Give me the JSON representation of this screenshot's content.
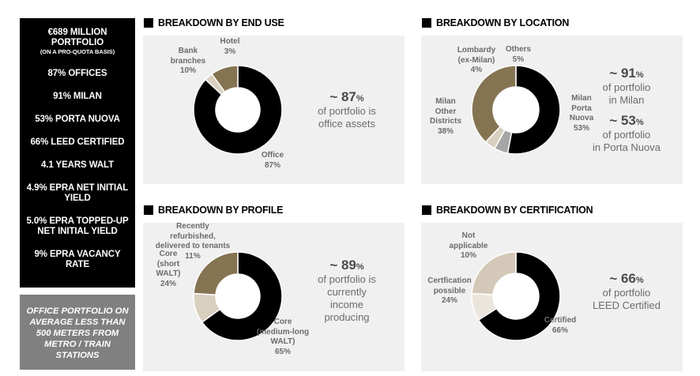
{
  "sidebar": {
    "kpis": [
      {
        "line1": "€689 MILLION",
        "line2": "PORTFOLIO",
        "sub": "(ON A PRO-QUOTA BASIS)"
      },
      {
        "line1": "87% OFFICES"
      },
      {
        "line1": "91% MILAN"
      },
      {
        "line1": "53% PORTA NUOVA"
      },
      {
        "line1": "66% LEED CERTIFIED"
      },
      {
        "line1": "4.1 YEARS WALT"
      },
      {
        "line1": "4.9% EPRA NET INITIAL",
        "line2": "YIELD"
      },
      {
        "line1": "5.0% EPRA TOPPED-UP",
        "line2": "NET INITIAL YIELD"
      },
      {
        "line1": "9% EPRA VACANCY",
        "line2": "RATE"
      }
    ],
    "note": [
      "OFFICE PORTFOLIO ON",
      "AVERAGE LESS THAN",
      "500 METERS FROM",
      "METRO / TRAIN",
      "STATIONS"
    ]
  },
  "chart_data": [
    {
      "type": "pie",
      "title": "BREAKDOWN BY END USE",
      "categories": [
        "Office",
        "Bank branches",
        "Hotel"
      ],
      "values": [
        87,
        10,
        3
      ],
      "unit": "%",
      "colors": [
        "#000000",
        "#857452",
        "#d9cfbf"
      ],
      "labels": [
        [
          "Office",
          "87%"
        ],
        [
          "Bank",
          "branches",
          "10%"
        ],
        [
          "Hotel",
          "3%"
        ]
      ],
      "callout": {
        "big": "~ 87",
        "pct": "%",
        "lines": [
          "of portfolio is",
          "office assets"
        ]
      }
    },
    {
      "type": "pie",
      "title": "BREAKDOWN BY LOCATION",
      "categories": [
        "Milan Porta Nuova",
        "Milan Other Districts",
        "Lombardy (ex-Milan)",
        "Others"
      ],
      "values": [
        53,
        38,
        4,
        5
      ],
      "unit": "%",
      "colors": [
        "#000000",
        "#857452",
        "#d9cfbf",
        "#a6a6a8"
      ],
      "labels": [
        [
          "Milan",
          "Porta",
          "Nuova",
          "53%"
        ],
        [
          "Milan",
          "Other",
          "Districts",
          "38%"
        ],
        [
          "Lombardy",
          "(ex-Milan)",
          "4%"
        ],
        [
          "Others",
          "5%"
        ]
      ],
      "callout": {
        "big": "~ 91",
        "pct": "%",
        "lines": [
          "of portfolio",
          "in Milan"
        ]
      },
      "callout2": {
        "big": "~ 53",
        "pct": "%",
        "lines": [
          "of portfolio",
          "in Porta Nuova"
        ]
      }
    },
    {
      "type": "pie",
      "title": "BREAKDOWN BY PROFILE",
      "categories": [
        "Core (medium-long WALT)",
        "Core (short WALT)",
        "Recently refurbished, delivered to tenants"
      ],
      "values": [
        65,
        24,
        11
      ],
      "unit": "%",
      "colors": [
        "#000000",
        "#857452",
        "#d9cfbf"
      ],
      "labels": [
        [
          "Core",
          "(medium-long",
          "WALT)",
          "65%"
        ],
        [
          "Core",
          "(short",
          "WALT)",
          "24%"
        ],
        [
          "Recently",
          "refurbished,",
          "delivered to tenants",
          "11%"
        ]
      ],
      "callout": {
        "big": "~ 89",
        "pct": "%",
        "lines": [
          "of portfolio is",
          "currently",
          "income",
          "producing"
        ]
      }
    },
    {
      "type": "pie",
      "title": "BREAKDOWN BY CERTIFICATION",
      "categories": [
        "Certified",
        "Certfication possible",
        "Not applicable"
      ],
      "values": [
        66,
        24,
        10
      ],
      "unit": "%",
      "colors": [
        "#000000",
        "#d4c9b8",
        "#ebe6dd"
      ],
      "labels": [
        [
          "Certified",
          "66%"
        ],
        [
          "Certfication",
          "possible",
          "24%"
        ],
        [
          "Not",
          "applicable",
          "10%"
        ]
      ],
      "callout": {
        "big": "~ 66",
        "pct": "%",
        "lines": [
          "of portfolio",
          "LEED Certified"
        ]
      }
    }
  ]
}
